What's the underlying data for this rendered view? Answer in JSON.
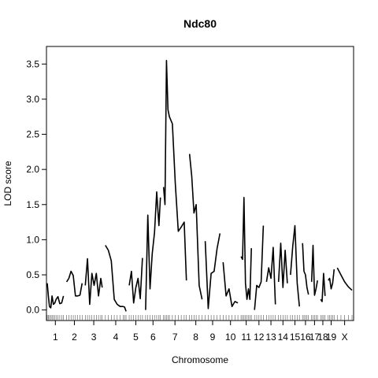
{
  "chart_data": {
    "type": "line",
    "title": "Ndc80",
    "xlabel": "Chromosome",
    "ylabel": "LOD score",
    "ylim": [
      -0.15,
      3.75
    ],
    "yticks": [
      0.0,
      0.5,
      1.0,
      1.5,
      2.0,
      2.5,
      3.0,
      3.5
    ],
    "ytick_labels": [
      "0.0",
      "0.5",
      "1.0",
      "1.5",
      "2.0",
      "2.5",
      "3.0",
      "3.5"
    ],
    "grid": false,
    "legend": "none",
    "line_color": "#000000",
    "chromosomes": [
      {
        "name": "1",
        "pos": [
          0,
          0.015,
          0.03,
          0.048,
          0.065,
          0.083,
          0.103,
          0.12,
          0.145,
          0.17,
          0.195,
          0.22
        ],
        "lod": [
          0.38,
          0.2,
          0.05,
          0.03,
          0.2,
          0.08,
          0.1,
          0.15,
          0.19,
          0.09,
          0.1,
          0.2
        ]
      },
      {
        "name": "2",
        "pos": [
          0,
          0.03,
          0.06,
          0.09,
          0.12,
          0.15,
          0.18,
          0.21
        ],
        "lod": [
          0.4,
          0.45,
          0.55,
          0.49,
          0.2,
          0.2,
          0.21,
          0.38
        ]
      },
      {
        "name": "3",
        "pos": [
          0,
          0.03,
          0.06,
          0.09,
          0.12,
          0.15,
          0.18,
          0.21,
          0.23
        ],
        "lod": [
          0.35,
          0.73,
          0.08,
          0.52,
          0.35,
          0.52,
          0.2,
          0.45,
          0.32
        ]
      },
      {
        "name": "4",
        "pos": [
          0,
          0.04,
          0.08,
          0.12,
          0.16,
          0.2,
          0.24,
          0.26,
          0.28
        ],
        "lod": [
          0.92,
          0.85,
          0.7,
          0.15,
          0.08,
          0.05,
          0.05,
          0.04,
          -0.02
        ]
      },
      {
        "name": "5",
        "pos": [
          0,
          0.03,
          0.06,
          0.09,
          0.12,
          0.15,
          0.18
        ],
        "lod": [
          0.35,
          0.55,
          0.1,
          0.32,
          0.45,
          0.16,
          0.74
        ]
      },
      {
        "name": "6",
        "pos": [
          0,
          0.03,
          0.06,
          0.09,
          0.12,
          0.15,
          0.18,
          0.2
        ],
        "lod": [
          0.0,
          1.35,
          0.3,
          0.8,
          1.1,
          1.68,
          1.2,
          1.6
        ]
      },
      {
        "name": "7",
        "pos": [
          0,
          0.02,
          0.04,
          0.06,
          0.08,
          0.12,
          0.16,
          0.2,
          0.24,
          0.28,
          0.31
        ],
        "lod": [
          1.75,
          1.5,
          3.55,
          2.85,
          2.75,
          2.65,
          1.8,
          1.12,
          1.18,
          1.25,
          0.42
        ]
      },
      {
        "name": "8",
        "pos": [
          0,
          0.03,
          0.06,
          0.09,
          0.13,
          0.17
        ],
        "lod": [
          2.22,
          1.9,
          1.38,
          1.5,
          0.35,
          0.15
        ]
      },
      {
        "name": "9",
        "pos": [
          0,
          0.04,
          0.08,
          0.12,
          0.16,
          0.2
        ],
        "lod": [
          0.98,
          0.02,
          0.52,
          0.55,
          0.87,
          1.09
        ]
      },
      {
        "name": "10",
        "pos": [
          0,
          0.04,
          0.08,
          0.12,
          0.16,
          0.2
        ],
        "lod": [
          0.68,
          0.2,
          0.3,
          0.05,
          0.12,
          0.1
        ]
      },
      {
        "name": "11",
        "pos": [
          0,
          0.02,
          0.04,
          0.06,
          0.08,
          0.1,
          0.12,
          0.14
        ],
        "lod": [
          0.76,
          0.72,
          1.6,
          0.38,
          0.15,
          0.3,
          0.15,
          0.88
        ]
      },
      {
        "name": "12",
        "pos": [
          0,
          0.03,
          0.06,
          0.09,
          0.12
        ],
        "lod": [
          0.0,
          0.35,
          0.32,
          0.4,
          1.2
        ]
      },
      {
        "name": "13",
        "pos": [
          0,
          0.03,
          0.06,
          0.09,
          0.12
        ],
        "lod": [
          0.4,
          0.6,
          0.45,
          0.89,
          0.08
        ]
      },
      {
        "name": "14",
        "pos": [
          0,
          0.03,
          0.06,
          0.09,
          0.12
        ],
        "lod": [
          0.4,
          0.95,
          0.32,
          0.85,
          0.38
        ]
      },
      {
        "name": "15",
        "pos": [
          0,
          0.03,
          0.06,
          0.09,
          0.12
        ],
        "lod": [
          0.5,
          0.9,
          1.2,
          0.38,
          0.05
        ]
      },
      {
        "name": "16",
        "pos": [
          0,
          0.02,
          0.04,
          0.06,
          0.08
        ],
        "lod": [
          0.95,
          0.55,
          0.5,
          0.32,
          0.22
        ]
      },
      {
        "name": "17",
        "pos": [
          0,
          0.02,
          0.04,
          0.06,
          0.08
        ],
        "lod": [
          0.4,
          0.92,
          0.21,
          0.3,
          0.42
        ]
      },
      {
        "name": "18",
        "pos": [
          0,
          0.02,
          0.04,
          0.06
        ],
        "lod": [
          0.15,
          0.12,
          0.52,
          0.2
        ]
      },
      {
        "name": "19",
        "pos": [
          0,
          0.02,
          0.04,
          0.06,
          0.08
        ],
        "lod": [
          0.42,
          0.45,
          0.3,
          0.38,
          0.58
        ]
      },
      {
        "name": "X",
        "pos": [
          0,
          0.05,
          0.1,
          0.15,
          0.2
        ],
        "lod": [
          0.6,
          0.5,
          0.4,
          0.33,
          0.28
        ]
      }
    ]
  }
}
